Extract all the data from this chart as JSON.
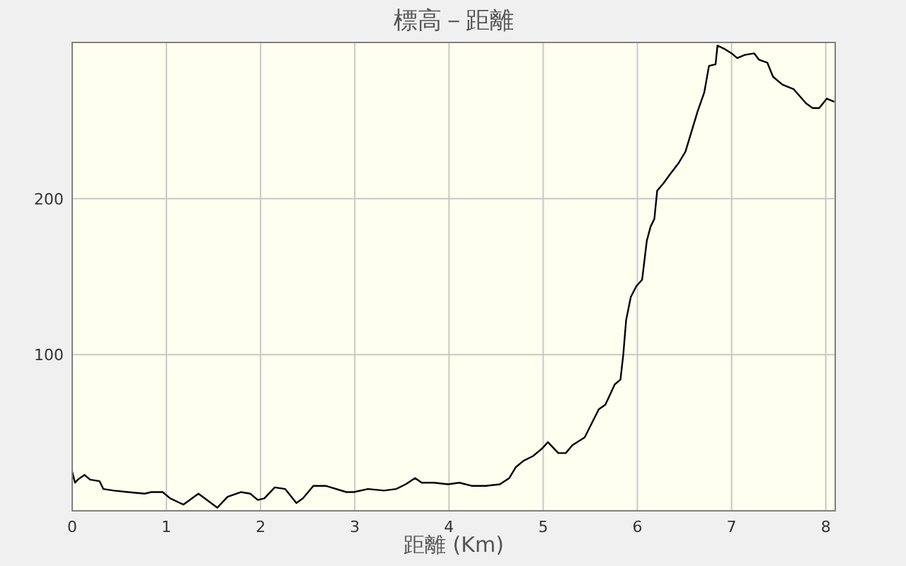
{
  "chart_data": {
    "type": "line",
    "title": "標高－距離",
    "xlabel": "距離 (Km)",
    "xlim": [
      0,
      8.1
    ],
    "xticks": [
      0,
      1,
      2,
      3,
      4,
      5,
      6,
      7,
      8
    ],
    "ylim": [
      0,
      300
    ],
    "yticks": [
      100,
      200
    ],
    "grid": true,
    "marker": "none",
    "line_style": "solid",
    "series": [
      {
        "color": "#000000",
        "x": [
          0,
          0.03,
          0.06,
          0.13,
          0.19,
          0.29,
          0.33,
          0.44,
          0.59,
          0.77,
          0.84,
          0.96,
          1.04,
          1.18,
          1.34,
          1.54,
          1.65,
          1.79,
          1.89,
          1.97,
          2.04,
          2.15,
          2.26,
          2.38,
          2.45,
          2.56,
          2.69,
          2.91,
          2.99,
          3.14,
          3.31,
          3.44,
          3.54,
          3.64,
          3.71,
          3.84,
          3.99,
          4.11,
          4.24,
          4.39,
          4.54,
          4.64,
          4.71,
          4.79,
          4.89,
          4.99,
          5.05,
          5.16,
          5.24,
          5.31,
          5.44,
          5.49,
          5.59,
          5.66,
          5.76,
          5.82,
          5.85,
          5.88,
          5.93,
          5.99,
          6.05,
          6.1,
          6.14,
          6.18,
          6.21,
          6.28,
          6.34,
          6.44,
          6.51,
          6.59,
          6.64,
          6.71,
          6.76,
          6.83,
          6.85,
          6.92,
          7.0,
          7.06,
          7.14,
          7.24,
          7.29,
          7.38,
          7.44,
          7.54,
          7.66,
          7.79,
          7.86,
          7.93,
          8.01,
          8.09
        ],
        "values": [
          25,
          18,
          20,
          23,
          20,
          19,
          14,
          13,
          12,
          11,
          12,
          12,
          8,
          4,
          11,
          2,
          9,
          12,
          11,
          7,
          8,
          15,
          14,
          5,
          8,
          16,
          16,
          12,
          12,
          14,
          13,
          14,
          17,
          21,
          18,
          18,
          17,
          18,
          16,
          16,
          17,
          21,
          28,
          32,
          35,
          40,
          44,
          37,
          37,
          42,
          47,
          53,
          65,
          68,
          81,
          84,
          100,
          122,
          137,
          144,
          148,
          173,
          182,
          187,
          205,
          210,
          215,
          223,
          230,
          246,
          256,
          268,
          285,
          286,
          298,
          296,
          293,
          290,
          292,
          293,
          289,
          287,
          278,
          273,
          270,
          261,
          258,
          258,
          264,
          262
        ]
      }
    ]
  }
}
